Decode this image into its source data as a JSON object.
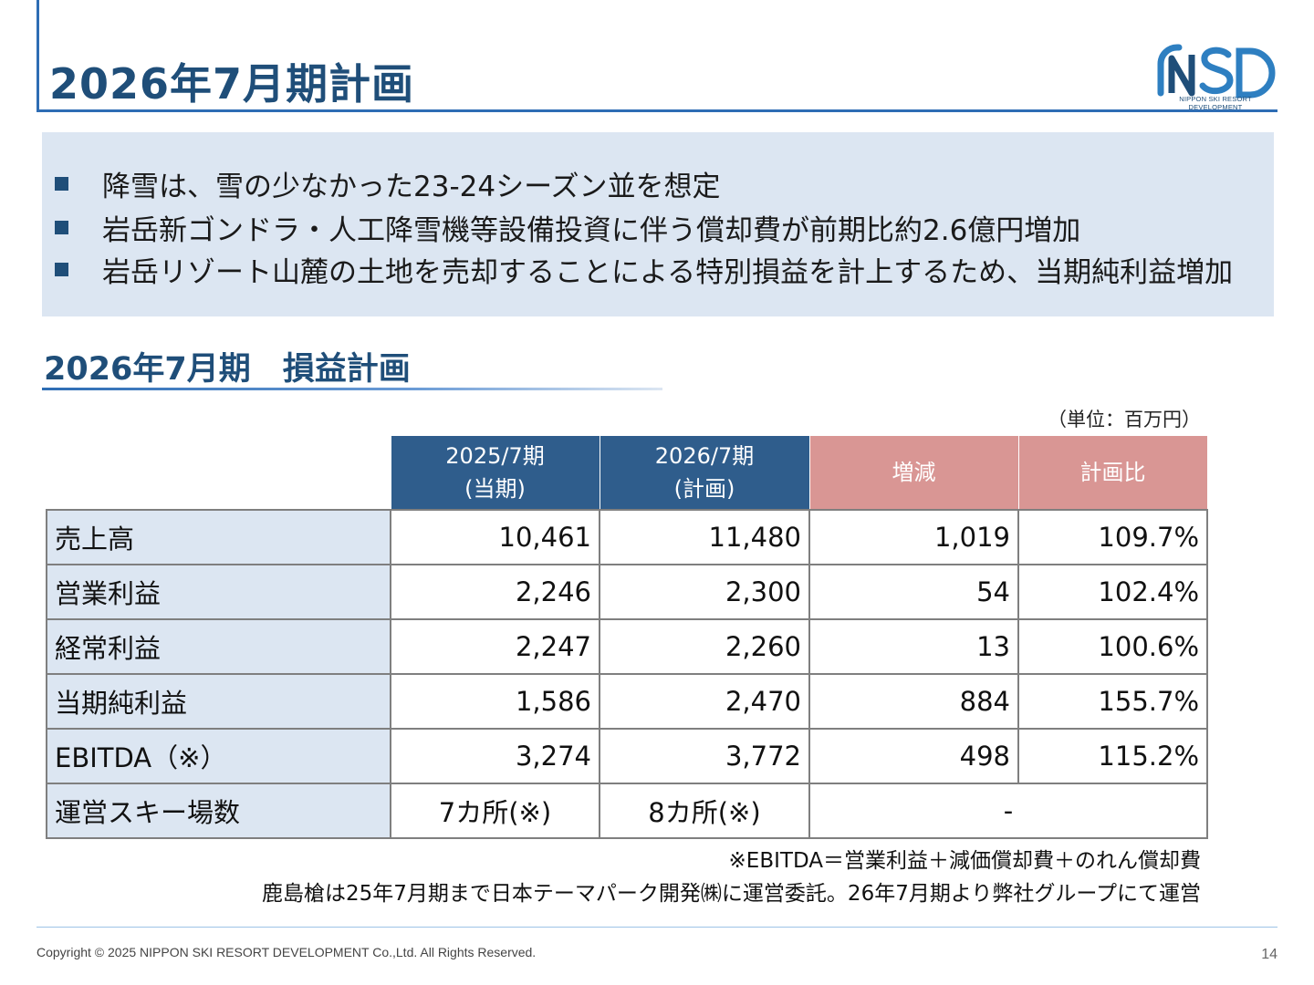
{
  "page": {
    "title": "2026年7月期計画",
    "logo_text": "NSD",
    "logo_subtitle": "NIPPON SKI RESORT DEVELOPMENT",
    "brand_color": "#1f4e79"
  },
  "bullets": [
    "降雪は、雪の少なかった23-24シーズン並を想定",
    "岩岳新ゴンドラ・人工降雪機等設備投資に伴う償却費が前期比約2.6億円増加",
    "岩岳リゾート山麓の土地を売却することによる特別損益を計上するため、当期純利益増加"
  ],
  "section": {
    "title": "2026年7月期　損益計画",
    "unit": "（単位：百万円）"
  },
  "table": {
    "headers": [
      "2025/7期\n(当期)",
      "2026/7期\n(計画)",
      "増減",
      "計画比"
    ],
    "rows": [
      {
        "label": "売上高",
        "values": [
          "10,461",
          "11,480",
          "1,019",
          "109.7%"
        ]
      },
      {
        "label": "営業利益",
        "values": [
          "2,246",
          "2,300",
          "54",
          "102.4%"
        ]
      },
      {
        "label": "経常利益",
        "values": [
          "2,247",
          "2,260",
          "13",
          "100.6%"
        ]
      },
      {
        "label": "当期純利益",
        "values": [
          "1,586",
          "2,470",
          "884",
          "155.7%"
        ]
      },
      {
        "label": "EBITDA（※）",
        "values": [
          "3,274",
          "3,772",
          "498",
          "115.2%"
        ]
      },
      {
        "label": "運営スキー場数",
        "values": [
          "7カ所(※)",
          "8カ所(※)",
          "-"
        ]
      }
    ],
    "header_colors": {
      "current": "#2f5d8c",
      "change": "#d99694"
    }
  },
  "notes": [
    "※EBITDA＝営業利益＋減価償却費＋のれん償却費",
    "鹿島槍は25年7月期まで日本テーマパーク開発㈱に運営委託。26年7月期より弊社グループにて運営"
  ],
  "footer": {
    "copyright": "Copyright © 2025 NIPPON SKI RESORT DEVELOPMENT Co.,Ltd. All Rights Reserved.",
    "page_number": "14"
  }
}
